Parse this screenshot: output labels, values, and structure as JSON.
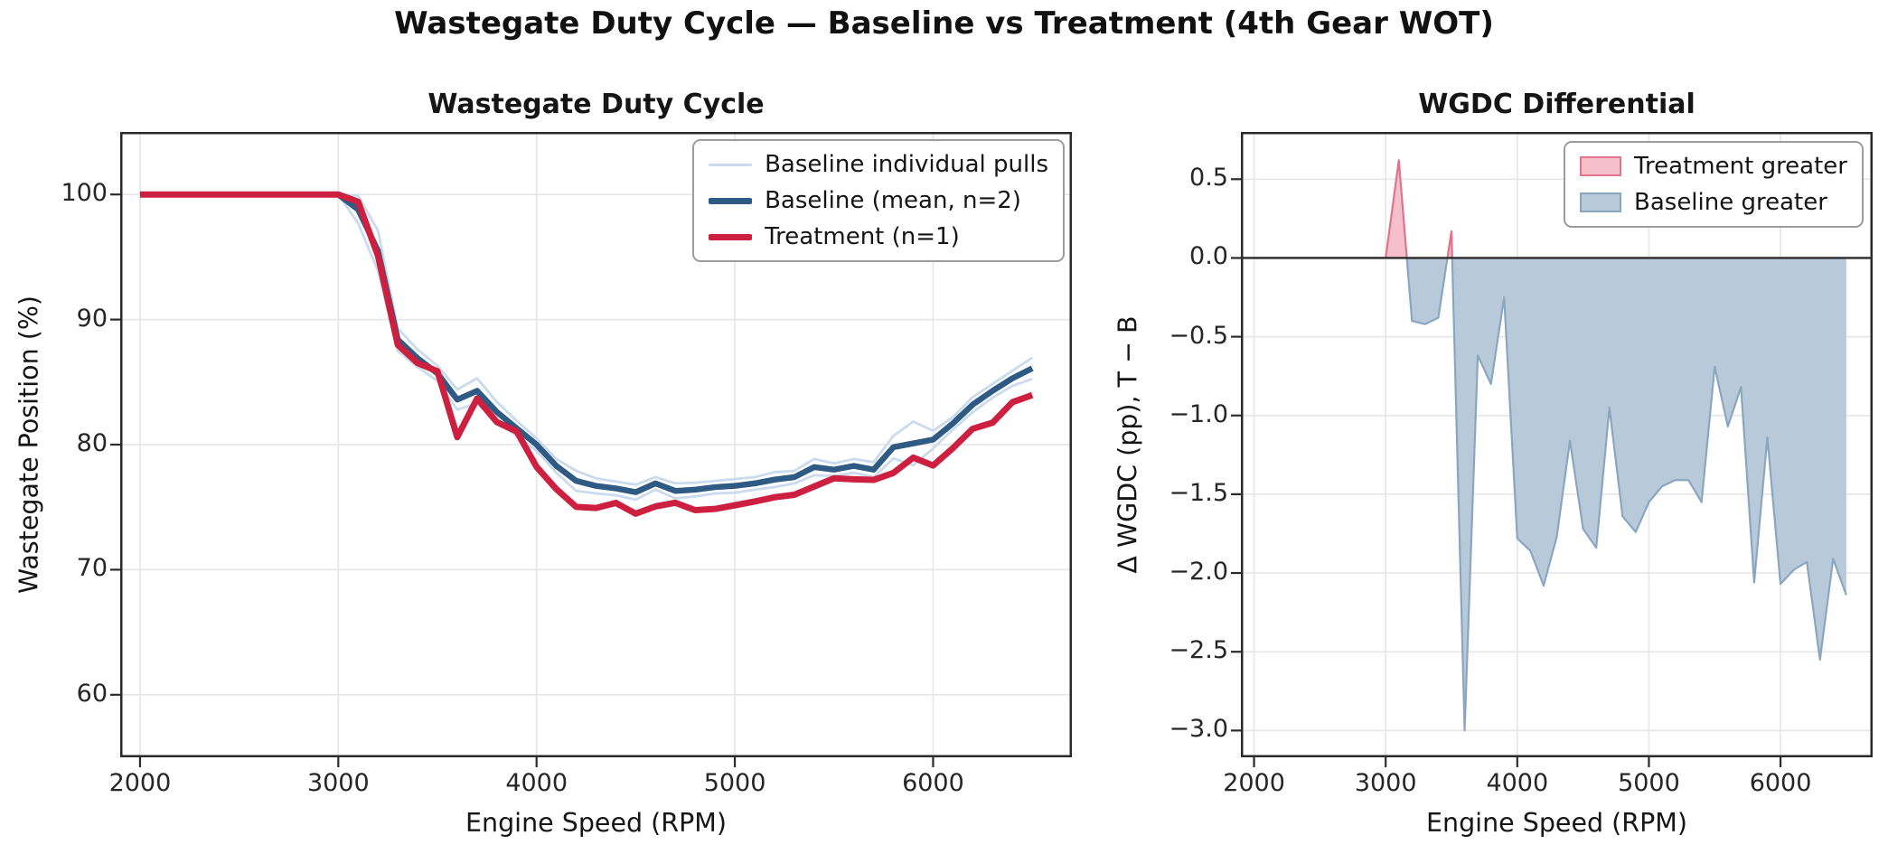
{
  "figure": {
    "suptitle": "Wastegate Duty Cycle — Baseline vs Treatment (4th Gear WOT)",
    "background": "#ffffff",
    "spine_color": "#2b2b2b",
    "grid_color": "#e7e7e7",
    "text_color": "#151515"
  },
  "chart_data": [
    {
      "type": "line",
      "title": "Wastegate Duty Cycle",
      "xlabel": "Engine Speed (RPM)",
      "ylabel": "Wastegate Position (%)",
      "xlim": [
        1900,
        6700
      ],
      "ylim": [
        55,
        105
      ],
      "grid": true,
      "xticks": {
        "values": [
          2000,
          3000,
          4000,
          5000,
          6000
        ],
        "labels": [
          "2000",
          "3000",
          "4000",
          "5000",
          "6000"
        ]
      },
      "yticks": {
        "values": [
          60,
          70,
          80,
          90,
          100
        ],
        "labels": [
          "60",
          "70",
          "80",
          "90",
          "100"
        ]
      },
      "x": [
        2000,
        2100,
        2200,
        2300,
        2400,
        2500,
        2600,
        2700,
        2800,
        2900,
        3000,
        3100,
        3200,
        3300,
        3400,
        3500,
        3600,
        3700,
        3800,
        3900,
        4000,
        4100,
        4200,
        4300,
        4400,
        4500,
        4600,
        4700,
        4800,
        4900,
        5000,
        5100,
        5200,
        5300,
        5400,
        5500,
        5600,
        5700,
        5800,
        5900,
        6000,
        6100,
        6200,
        6300,
        6400,
        6500
      ],
      "series": [
        {
          "name": "Baseline pull 1",
          "color": "#c9dbec",
          "lw": 2.8,
          "values": [
            100,
            100,
            100,
            100,
            100,
            100,
            100,
            100,
            100,
            100,
            100,
            99.9,
            97.1,
            89.3,
            87.6,
            86.3,
            84.4,
            85.3,
            83.4,
            81.9,
            80.5,
            78.85,
            77.9,
            77.3,
            77.05,
            76.8,
            77.4,
            76.9,
            76.95,
            77.1,
            77.25,
            77.4,
            77.8,
            77.9,
            78.85,
            78.5,
            78.85,
            78.6,
            80.7,
            81.85,
            81.1,
            82.2,
            83.8,
            84.85,
            85.9,
            86.95
          ]
        },
        {
          "name": "Baseline pull 2",
          "color": "#c9dbec",
          "lw": 2.8,
          "values": [
            100,
            100,
            100,
            100,
            100,
            100,
            100,
            100,
            100,
            100,
            100,
            97.7,
            93.9,
            87.5,
            86.2,
            85.1,
            82.8,
            83.3,
            81.8,
            80.7,
            79.5,
            77.75,
            76.3,
            76.1,
            75.95,
            75.6,
            76.4,
            75.7,
            75.85,
            76.1,
            76.15,
            76.4,
            76.6,
            76.9,
            77.55,
            77.5,
            77.75,
            77.4,
            78.9,
            78.35,
            79.7,
            81.2,
            82.6,
            83.75,
            84.7,
            85.25
          ]
        },
        {
          "name": "Baseline (mean, n=2)",
          "color": "#2e5a84",
          "lw": 6.5,
          "values": [
            100,
            100,
            100,
            100,
            100,
            100,
            100,
            100,
            100,
            100,
            100,
            98.8,
            95.5,
            88.4,
            86.9,
            85.7,
            83.6,
            84.3,
            82.6,
            81.3,
            80.0,
            78.3,
            77.1,
            76.7,
            76.5,
            76.2,
            76.9,
            76.3,
            76.4,
            76.6,
            76.7,
            76.9,
            77.2,
            77.4,
            78.2,
            78.0,
            78.3,
            78.0,
            79.8,
            80.1,
            80.4,
            81.7,
            83.2,
            84.3,
            85.3,
            86.1
          ]
        },
        {
          "name": "Treatment (n=1)",
          "color": "#cd1f3f",
          "lw": 7,
          "values": [
            100,
            100,
            100,
            100,
            100,
            100,
            100,
            100,
            100,
            100,
            100,
            99.42,
            95.1,
            87.98,
            86.52,
            85.87,
            80.6,
            83.68,
            81.8,
            81.05,
            78.22,
            76.44,
            75.02,
            74.93,
            75.34,
            74.48,
            75.06,
            75.35,
            74.76,
            74.86,
            75.15,
            75.45,
            75.79,
            75.99,
            76.65,
            77.31,
            77.23,
            77.18,
            77.74,
            78.96,
            78.33,
            79.72,
            81.27,
            81.75,
            83.39,
            83.96
          ]
        }
      ],
      "legend": {
        "position": "upper right",
        "entries": [
          {
            "label": "Baseline individual pulls",
            "swatch": "line",
            "color": "#c9dbec",
            "lw": 3
          },
          {
            "label": "Baseline (mean, n=2)",
            "swatch": "line",
            "color": "#2e5a84",
            "lw": 7
          },
          {
            "label": "Treatment (n=1)",
            "swatch": "line",
            "color": "#cd1f3f",
            "lw": 7
          }
        ]
      }
    },
    {
      "type": "area",
      "title": "WGDC Differential",
      "xlabel": "Engine Speed (RPM)",
      "ylabel": "Δ WGDC (pp), T − B",
      "xlim": [
        1900,
        6700
      ],
      "ylim": [
        -3.17,
        0.8
      ],
      "grid": true,
      "xticks": {
        "values": [
          2000,
          3000,
          4000,
          5000,
          6000
        ],
        "labels": [
          "2000",
          "3000",
          "4000",
          "5000",
          "6000"
        ]
      },
      "yticks": {
        "values": [
          0.5,
          0.0,
          -0.5,
          -1.0,
          -1.5,
          -2.0,
          -2.5,
          -3.0
        ],
        "labels": [
          "0.5",
          "0.0",
          "−0.5",
          "−1.0",
          "−1.5",
          "−2.0",
          "−2.5",
          "−3.0"
        ]
      },
      "x": [
        2000,
        2100,
        2200,
        2300,
        2400,
        2500,
        2600,
        2700,
        2800,
        2900,
        3000,
        3100,
        3200,
        3300,
        3400,
        3500,
        3600,
        3700,
        3800,
        3900,
        4000,
        4100,
        4200,
        4300,
        4400,
        4500,
        4600,
        4700,
        4800,
        4900,
        5000,
        5100,
        5200,
        5300,
        5400,
        5500,
        5600,
        5700,
        5800,
        5900,
        6000,
        6100,
        6200,
        6300,
        6400,
        6500
      ],
      "values": [
        0,
        0,
        0,
        0,
        0,
        0,
        0,
        0,
        0,
        0,
        0,
        0.62,
        -0.4,
        -0.42,
        -0.38,
        0.17,
        -3.0,
        -0.62,
        -0.8,
        -0.25,
        -1.78,
        -1.86,
        -2.08,
        -1.77,
        -1.16,
        -1.72,
        -1.84,
        -0.95,
        -1.64,
        -1.74,
        -1.55,
        -1.45,
        -1.41,
        -1.41,
        -1.55,
        -0.69,
        -1.07,
        -0.82,
        -2.06,
        -1.14,
        -2.07,
        -1.98,
        -1.93,
        -2.55,
        -1.91,
        -2.14
      ],
      "zero_baseline": 0,
      "positive_fill": "#f5c0cb",
      "positive_edge": "#e2738c",
      "negative_fill": "#b8c9da",
      "negative_edge": "#8aa6c0",
      "zero_line_color": "#2b2b2b",
      "legend": {
        "position": "upper right",
        "entries": [
          {
            "label": "Treatment greater",
            "swatch": "patch",
            "fill": "#f5c0cb",
            "edge": "#e2738c"
          },
          {
            "label": "Baseline greater",
            "swatch": "patch",
            "fill": "#b8c9da",
            "edge": "#8aa6c0"
          }
        ]
      }
    }
  ]
}
